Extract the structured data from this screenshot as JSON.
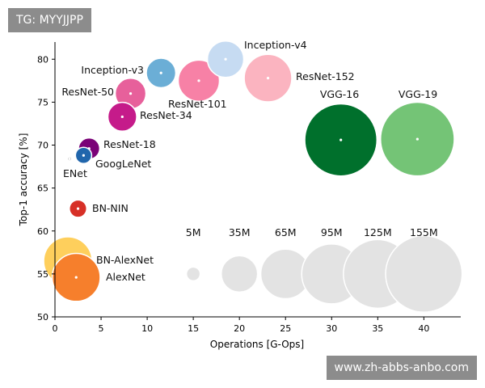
{
  "watermark_top": "TG: MYYJJPP",
  "watermark_bottom": "www.zh-abbs-anbo.com",
  "chart_data": {
    "type": "scatter",
    "title": "",
    "xlabel": "Operations [G-Ops]",
    "ylabel": "Top-1 accuracy [%]",
    "xlim": [
      0,
      44
    ],
    "ylim": [
      50,
      82
    ],
    "xticks": [
      0,
      5,
      10,
      15,
      20,
      25,
      30,
      35,
      40
    ],
    "yticks": [
      50,
      55,
      60,
      65,
      70,
      75,
      80
    ],
    "grid": false,
    "points": [
      {
        "label": "Inception-v4",
        "x": 18.5,
        "y": 80.0,
        "params_m": 35,
        "color": "#c6dbf2"
      },
      {
        "label": "Inception-v3",
        "x": 11.5,
        "y": 78.4,
        "params_m": 23,
        "color": "#6baed6"
      },
      {
        "label": "ResNet-152",
        "x": 23.1,
        "y": 77.8,
        "params_m": 60,
        "color": "#fbb4c0"
      },
      {
        "label": "ResNet-101",
        "x": 15.6,
        "y": 77.5,
        "params_m": 45,
        "color": "#f781a6"
      },
      {
        "label": "ResNet-50",
        "x": 8.2,
        "y": 76.0,
        "params_m": 25,
        "color": "#e7609b"
      },
      {
        "label": "ResNet-34",
        "x": 7.3,
        "y": 73.3,
        "params_m": 22,
        "color": "#c51b8a"
      },
      {
        "label": "ResNet-18",
        "x": 3.7,
        "y": 69.6,
        "params_m": 12,
        "color": "#7a0177"
      },
      {
        "label": "GoogLeNet",
        "x": 3.1,
        "y": 68.8,
        "params_m": 7,
        "color": "#2166ac"
      },
      {
        "label": "ENet",
        "x": 1.6,
        "y": 68.4,
        "params_m": 0.4,
        "color": "#000000"
      },
      {
        "label": "VGG-16",
        "x": 31.0,
        "y": 70.6,
        "params_m": 138,
        "color": "#00702c"
      },
      {
        "label": "VGG-19",
        "x": 39.3,
        "y": 70.7,
        "params_m": 144,
        "color": "#74c476"
      },
      {
        "label": "BN-NIN",
        "x": 2.5,
        "y": 62.6,
        "params_m": 8,
        "color": "#d73027"
      },
      {
        "label": "BN-AlexNet",
        "x": 1.4,
        "y": 56.5,
        "params_m": 62,
        "color": "#fecf5c"
      },
      {
        "label": "AlexNet",
        "x": 2.3,
        "y": 54.6,
        "params_m": 61,
        "color": "#f67f2c"
      }
    ],
    "size_legend": [
      {
        "label": "5M",
        "x": 15,
        "y": 55,
        "params_m": 5
      },
      {
        "label": "35M",
        "x": 20,
        "y": 55,
        "params_m": 35
      },
      {
        "label": "65M",
        "x": 25,
        "y": 55,
        "params_m": 65
      },
      {
        "label": "95M",
        "x": 30,
        "y": 55,
        "params_m": 95
      },
      {
        "label": "125M",
        "x": 35,
        "y": 55,
        "params_m": 125
      },
      {
        "label": "155M",
        "x": 40,
        "y": 55,
        "params_m": 155
      }
    ]
  }
}
